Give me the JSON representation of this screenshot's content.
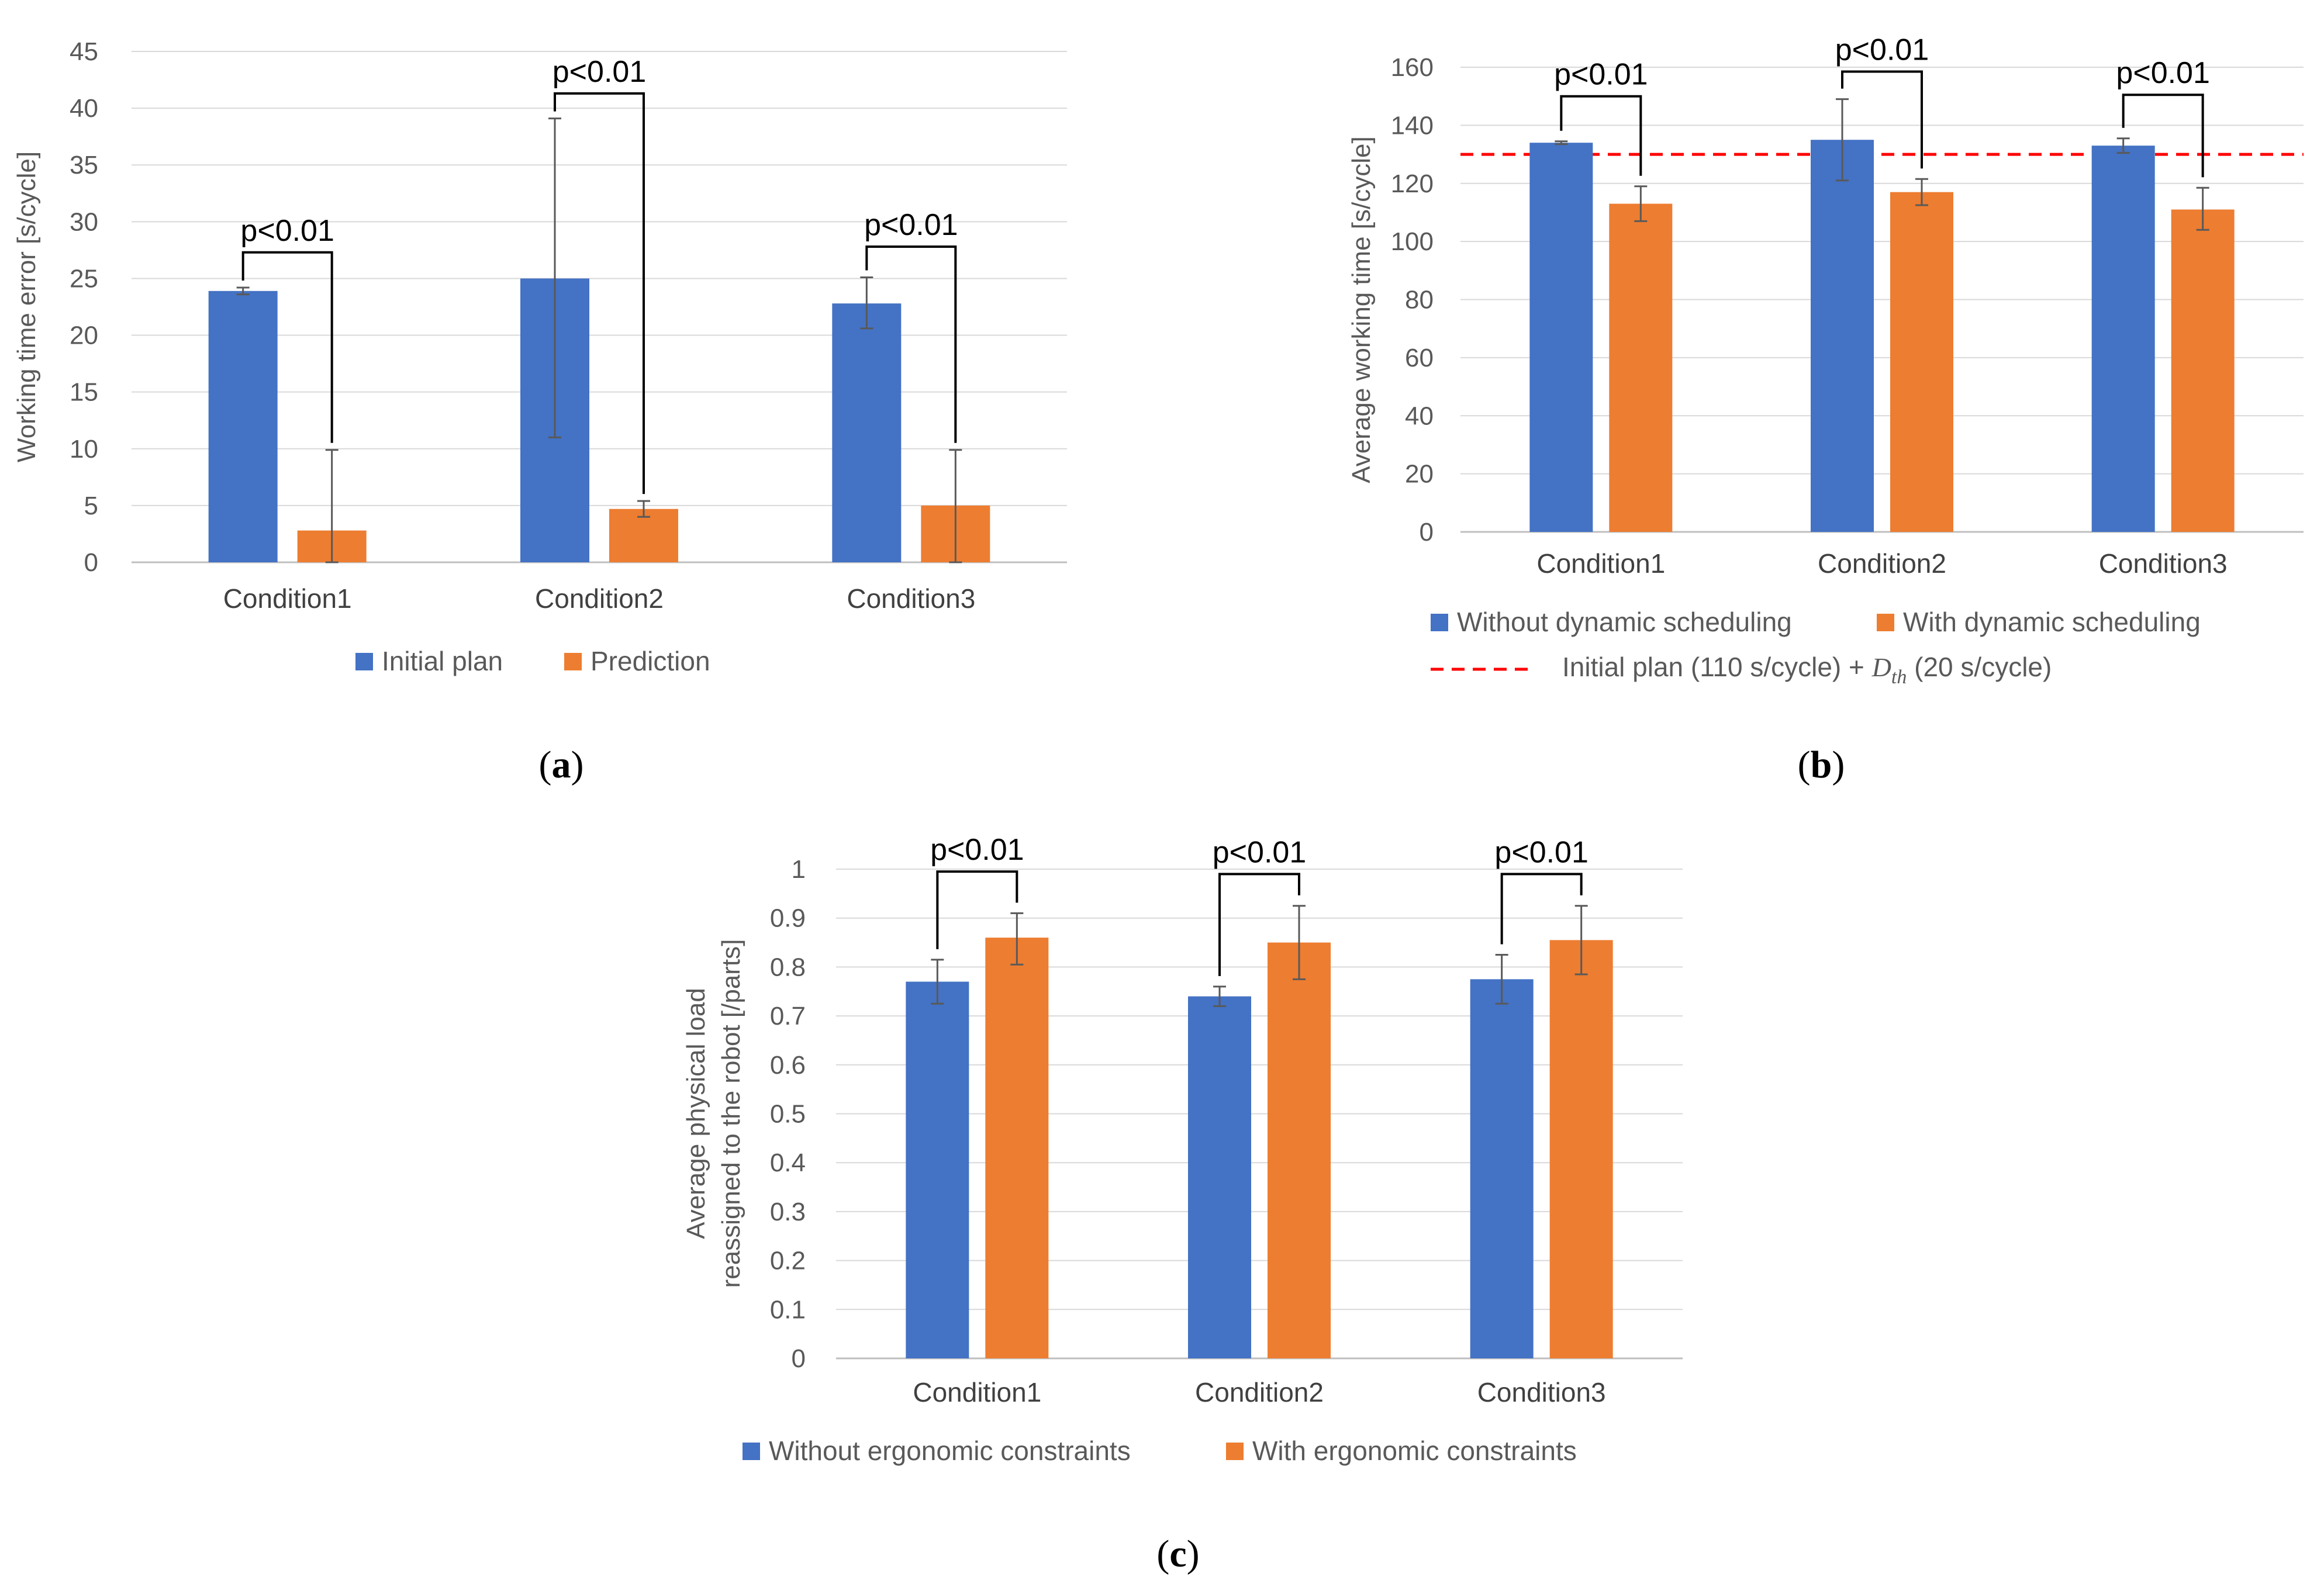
{
  "chart_data": [
    {
      "type": "bar",
      "panel_label": "a",
      "categories": [
        "Condition1",
        "Condition2",
        "Condition3"
      ],
      "ylabel": "Working time error [s/cycle]",
      "xlabel": "",
      "ylim": [
        0,
        45
      ],
      "yticks": [
        0,
        5,
        10,
        15,
        20,
        25,
        30,
        35,
        40,
        45
      ],
      "grid": true,
      "legend_position": "bottom",
      "series": [
        {
          "name": "Initial plan",
          "color": "#4472C4",
          "values": [
            23.9,
            25.0,
            22.8
          ],
          "error_low": [
            23.6,
            11.0,
            20.6
          ],
          "error_high": [
            24.2,
            39.1,
            25.1
          ]
        },
        {
          "name": "Prediction",
          "color": "#ED7D31",
          "values": [
            2.8,
            4.7,
            5.0
          ],
          "error_low": [
            0,
            4.0,
            0
          ],
          "error_high": [
            9.9,
            5.4,
            9.9
          ]
        }
      ],
      "significance": [
        {
          "category": "Condition1",
          "label": "p<0.01",
          "bracket_top": 27.3
        },
        {
          "category": "Condition2",
          "label": "p<0.01",
          "bracket_top": 41.3
        },
        {
          "category": "Condition3",
          "label": "p<0.01",
          "bracket_top": 27.8
        }
      ]
    },
    {
      "type": "bar",
      "panel_label": "b",
      "categories": [
        "Condition1",
        "Condition2",
        "Condition3"
      ],
      "ylabel": "Average working time [s/cycle]",
      "xlabel": "",
      "ylim": [
        0,
        160
      ],
      "yticks": [
        0,
        20,
        40,
        60,
        80,
        100,
        120,
        140,
        160
      ],
      "grid": true,
      "legend_position": "bottom",
      "series": [
        {
          "name": "Without dynamic scheduling",
          "color": "#4472C4",
          "values": [
            134,
            135,
            133
          ],
          "error_low": [
            133.5,
            121,
            130.5
          ],
          "error_high": [
            134.5,
            149,
            135.5
          ]
        },
        {
          "name": "With dynamic scheduling",
          "color": "#ED7D31",
          "values": [
            113,
            117,
            111
          ],
          "error_low": [
            107,
            112.5,
            104
          ],
          "error_high": [
            119,
            121.5,
            118.5
          ]
        }
      ],
      "reference_line": {
        "value": 130,
        "color": "#FF0000",
        "label_prefix": "Initial plan (110 s/cycle) + ",
        "label_math": "D",
        "label_sub": "th",
        "label_suffix": " (20 s/cycle)"
      },
      "significance": [
        {
          "category": "Condition1",
          "label": "p<0.01",
          "bracket_top": 150
        },
        {
          "category": "Condition2",
          "label": "p<0.01",
          "bracket_top": 158.5
        },
        {
          "category": "Condition3",
          "label": "p<0.01",
          "bracket_top": 150.5
        }
      ]
    },
    {
      "type": "bar",
      "panel_label": "c",
      "categories": [
        "Condition1",
        "Condition2",
        "Condition3"
      ],
      "ylabel": [
        "Average physical load",
        "reassigned to the robot [/parts]"
      ],
      "xlabel": "",
      "ylim": [
        0,
        1
      ],
      "yticks": [
        0,
        0.1,
        0.2,
        0.3,
        0.4,
        0.5,
        0.6,
        0.7,
        0.8,
        0.9,
        1
      ],
      "ytick_labels": [
        "0",
        "0.1",
        "0.2",
        "0.3",
        "0.4",
        "0.5",
        "0.6",
        "0.7",
        "0.8",
        "0.9",
        "1"
      ],
      "grid": true,
      "legend_position": "bottom",
      "series": [
        {
          "name": "Without ergonomic constraints",
          "color": "#4472C4",
          "values": [
            0.77,
            0.74,
            0.775
          ],
          "error_low": [
            0.725,
            0.72,
            0.725
          ],
          "error_high": [
            0.815,
            0.76,
            0.825
          ]
        },
        {
          "name": "With ergonomic constraints",
          "color": "#ED7D31",
          "values": [
            0.86,
            0.85,
            0.855
          ],
          "error_low": [
            0.805,
            0.775,
            0.785
          ],
          "error_high": [
            0.91,
            0.925,
            0.925
          ]
        }
      ],
      "significance": [
        {
          "category": "Condition1",
          "label": "p<0.01",
          "bracket_top": 0.995
        },
        {
          "category": "Condition2",
          "label": "p<0.01",
          "bracket_top": 0.99
        },
        {
          "category": "Condition3",
          "label": "p<0.01",
          "bracket_top": 0.99
        }
      ]
    }
  ]
}
